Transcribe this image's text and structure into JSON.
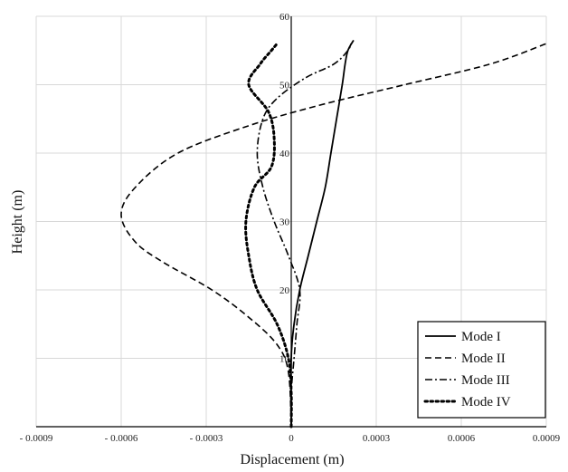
{
  "chart_data": {
    "type": "line",
    "title": "",
    "xlabel": "Displacement (m)",
    "ylabel": "Height (m)",
    "xlim": [
      -0.0009,
      0.0009
    ],
    "ylim": [
      0,
      60
    ],
    "grid": true,
    "legend_position": "bottom-right",
    "x_ticks": [
      -0.0009,
      -0.0006,
      -0.0003,
      0,
      0.0003,
      0.0006,
      0.0009
    ],
    "x_tick_labels": [
      "- 0.0009",
      "- 0.0006",
      "- 0.0003",
      "0",
      "0.0003",
      "0.0006",
      "0.0009"
    ],
    "y_ticks": [
      10,
      20,
      30,
      40,
      50,
      60
    ],
    "y_tick_labels": [
      "10",
      "20",
      "30",
      "40",
      "50",
      "60"
    ],
    "series": [
      {
        "name": "Mode I",
        "style": "solid",
        "points": [
          [
            0,
            0
          ],
          [
            0,
            10
          ],
          [
            1e-05,
            15
          ],
          [
            3e-05,
            20
          ],
          [
            6e-05,
            25
          ],
          [
            9e-05,
            30
          ],
          [
            0.00012,
            35
          ],
          [
            0.00014,
            40
          ],
          [
            0.00016,
            45
          ],
          [
            0.00018,
            50
          ],
          [
            0.00019,
            53
          ],
          [
            0.0002,
            55
          ],
          [
            0.00022,
            56.5
          ]
        ]
      },
      {
        "name": "Mode II",
        "style": "dashed",
        "points": [
          [
            0,
            0
          ],
          [
            -1e-05,
            8
          ],
          [
            -5e-05,
            12
          ],
          [
            -0.00015,
            16
          ],
          [
            -0.00028,
            20
          ],
          [
            -0.00045,
            24
          ],
          [
            -0.00055,
            27
          ],
          [
            -0.0006,
            31
          ],
          [
            -0.00055,
            35
          ],
          [
            -0.0004,
            40
          ],
          [
            -0.00015,
            44
          ],
          [
            0.0001,
            47
          ],
          [
            0.0004,
            50
          ],
          [
            0.0007,
            53
          ],
          [
            0.0009,
            56
          ]
        ]
      },
      {
        "name": "Mode III",
        "style": "dashdot",
        "points": [
          [
            0,
            0
          ],
          [
            0,
            5
          ],
          [
            1e-05,
            10
          ],
          [
            2e-05,
            15
          ],
          [
            3e-05,
            20
          ],
          [
            -1e-05,
            25
          ],
          [
            -6e-05,
            30
          ],
          [
            -0.0001,
            35
          ],
          [
            -0.00012,
            40
          ],
          [
            -0.0001,
            45
          ],
          [
            -5e-05,
            48
          ],
          [
            5e-05,
            51
          ],
          [
            0.00015,
            53
          ],
          [
            0.0002,
            55
          ],
          [
            0.00021,
            56
          ]
        ]
      },
      {
        "name": "Mode IV",
        "style": "dotted",
        "points": [
          [
            0,
            0
          ],
          [
            0,
            5
          ],
          [
            -1e-05,
            10
          ],
          [
            -5e-05,
            15
          ],
          [
            -0.00012,
            20
          ],
          [
            -0.00015,
            25
          ],
          [
            -0.00016,
            30
          ],
          [
            -0.00013,
            35
          ],
          [
            -7e-05,
            38
          ],
          [
            -6e-05,
            42
          ],
          [
            -8e-05,
            46
          ],
          [
            -0.00015,
            50
          ],
          [
            -0.00011,
            53
          ],
          [
            -7e-05,
            55
          ],
          [
            -5e-05,
            56
          ]
        ]
      }
    ]
  },
  "colors": {
    "line": "#000000",
    "grid": "#d8d8d8",
    "axis": "#000000"
  }
}
